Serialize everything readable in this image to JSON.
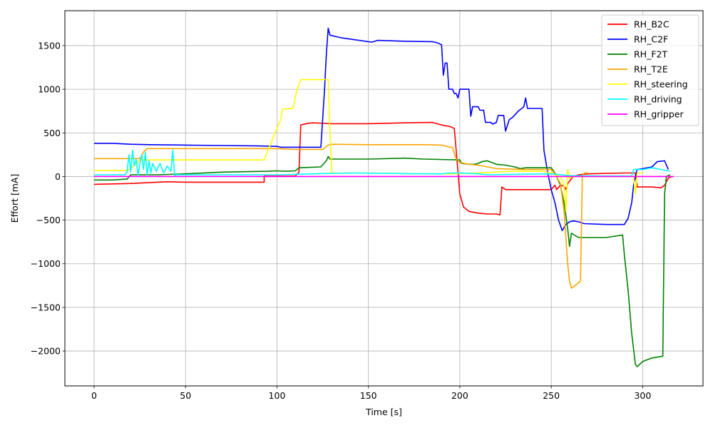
{
  "chart_data": {
    "type": "line",
    "title": "",
    "xlabel": "Time [s]",
    "ylabel": "Effort [mA]",
    "xlim": [
      -16,
      333
    ],
    "ylim": [
      -2400,
      1900
    ],
    "xticks": [
      0,
      50,
      100,
      150,
      200,
      250,
      300
    ],
    "yticks": [
      -2000,
      -1500,
      -1000,
      -500,
      0,
      500,
      1000,
      1500
    ],
    "xtick_labels": [
      "0",
      "50",
      "100",
      "150",
      "200",
      "250",
      "300"
    ],
    "ytick_labels": [
      "−2000",
      "−1500",
      "−1000",
      "−500",
      "0",
      "500",
      "1000",
      "1500"
    ],
    "grid": true,
    "legend_position": "top-right",
    "series": [
      {
        "name": "RH_B2C",
        "color": "#ff0000",
        "points": [
          [
            0,
            -90
          ],
          [
            20,
            -80
          ],
          [
            40,
            -60
          ],
          [
            50,
            -65
          ],
          [
            70,
            -65
          ],
          [
            93,
            -65
          ],
          [
            93,
            5
          ],
          [
            110,
            5
          ],
          [
            112,
            50
          ],
          [
            113,
            590
          ],
          [
            117,
            610
          ],
          [
            120,
            615
          ],
          [
            130,
            605
          ],
          [
            140,
            605
          ],
          [
            150,
            605
          ],
          [
            170,
            615
          ],
          [
            185,
            620
          ],
          [
            190,
            590
          ],
          [
            195,
            570
          ],
          [
            197,
            550
          ],
          [
            198,
            300
          ],
          [
            200,
            -200
          ],
          [
            202,
            -350
          ],
          [
            205,
            -400
          ],
          [
            210,
            -420
          ],
          [
            215,
            -430
          ],
          [
            220,
            -430
          ],
          [
            222,
            -440
          ],
          [
            223,
            -120
          ],
          [
            225,
            -150
          ],
          [
            240,
            -150
          ],
          [
            250,
            -150
          ],
          [
            252,
            -100
          ],
          [
            253,
            -150
          ],
          [
            255,
            -100
          ],
          [
            257,
            -110
          ],
          [
            258,
            -150
          ],
          [
            259,
            -80
          ],
          [
            262,
            0
          ],
          [
            265,
            20
          ],
          [
            270,
            30
          ],
          [
            280,
            35
          ],
          [
            290,
            40
          ],
          [
            296,
            40
          ],
          [
            297,
            -120
          ],
          [
            305,
            -120
          ],
          [
            310,
            -130
          ],
          [
            312,
            -100
          ],
          [
            314,
            -20
          ],
          [
            316,
            0
          ]
        ]
      },
      {
        "name": "RH_C2F",
        "color": "#0000ff",
        "points": [
          [
            0,
            380
          ],
          [
            10,
            380
          ],
          [
            20,
            370
          ],
          [
            30,
            365
          ],
          [
            50,
            360
          ],
          [
            70,
            355
          ],
          [
            90,
            350
          ],
          [
            100,
            345
          ],
          [
            102,
            335
          ],
          [
            110,
            335
          ],
          [
            124,
            335
          ],
          [
            126,
            1000
          ],
          [
            127,
            1400
          ],
          [
            128,
            1700
          ],
          [
            129,
            1620
          ],
          [
            135,
            1590
          ],
          [
            150,
            1545
          ],
          [
            152,
            1540
          ],
          [
            155,
            1560
          ],
          [
            170,
            1550
          ],
          [
            185,
            1545
          ],
          [
            188,
            1530
          ],
          [
            190,
            1510
          ],
          [
            191,
            1160
          ],
          [
            192,
            1300
          ],
          [
            193,
            1300
          ],
          [
            194,
            1000
          ],
          [
            196,
            1000
          ],
          [
            197,
            950
          ],
          [
            198,
            950
          ],
          [
            199,
            900
          ],
          [
            200,
            1000
          ],
          [
            205,
            1000
          ],
          [
            206,
            690
          ],
          [
            207,
            800
          ],
          [
            210,
            800
          ],
          [
            211,
            760
          ],
          [
            213,
            760
          ],
          [
            214,
            620
          ],
          [
            217,
            620
          ],
          [
            218,
            600
          ],
          [
            220,
            620
          ],
          [
            221,
            700
          ],
          [
            224,
            700
          ],
          [
            225,
            520
          ],
          [
            227,
            650
          ],
          [
            229,
            680
          ],
          [
            232,
            750
          ],
          [
            235,
            800
          ],
          [
            236,
            900
          ],
          [
            237,
            780
          ],
          [
            245,
            780
          ],
          [
            246,
            300
          ],
          [
            248,
            50
          ],
          [
            250,
            -150
          ],
          [
            252,
            -300
          ],
          [
            254,
            -500
          ],
          [
            256,
            -620
          ],
          [
            258,
            -550
          ],
          [
            260,
            -520
          ],
          [
            262,
            -510
          ],
          [
            265,
            -520
          ],
          [
            268,
            -540
          ],
          [
            280,
            -550
          ],
          [
            290,
            -550
          ],
          [
            292,
            -480
          ],
          [
            294,
            -300
          ],
          [
            295,
            -100
          ],
          [
            296,
            0
          ],
          [
            297,
            80
          ],
          [
            300,
            90
          ],
          [
            305,
            110
          ],
          [
            308,
            170
          ],
          [
            312,
            180
          ],
          [
            314,
            80
          ]
        ]
      },
      {
        "name": "RH_F2T",
        "color": "#008000",
        "points": [
          [
            0,
            -40
          ],
          [
            10,
            -40
          ],
          [
            18,
            -30
          ],
          [
            20,
            20
          ],
          [
            35,
            20
          ],
          [
            50,
            30
          ],
          [
            70,
            50
          ],
          [
            95,
            60
          ],
          [
            100,
            65
          ],
          [
            105,
            60
          ],
          [
            110,
            65
          ],
          [
            112,
            100
          ],
          [
            124,
            110
          ],
          [
            127,
            180
          ],
          [
            128,
            230
          ],
          [
            129,
            200
          ],
          [
            150,
            200
          ],
          [
            170,
            210
          ],
          [
            180,
            200
          ],
          [
            200,
            190
          ],
          [
            201,
            150
          ],
          [
            205,
            140
          ],
          [
            208,
            140
          ],
          [
            210,
            150
          ],
          [
            212,
            170
          ],
          [
            215,
            180
          ],
          [
            220,
            140
          ],
          [
            225,
            130
          ],
          [
            230,
            110
          ],
          [
            233,
            90
          ],
          [
            236,
            100
          ],
          [
            250,
            100
          ],
          [
            252,
            40
          ],
          [
            255,
            -100
          ],
          [
            257,
            -300
          ],
          [
            259,
            -600
          ],
          [
            260,
            -800
          ],
          [
            261,
            -650
          ],
          [
            265,
            -700
          ],
          [
            280,
            -700
          ],
          [
            289,
            -670
          ],
          [
            290,
            -900
          ],
          [
            292,
            -1300
          ],
          [
            294,
            -1800
          ],
          [
            296,
            -2150
          ],
          [
            297,
            -2180
          ],
          [
            300,
            -2120
          ],
          [
            305,
            -2080
          ],
          [
            308,
            -2070
          ],
          [
            311,
            -2060
          ],
          [
            312,
            -200
          ],
          [
            313,
            0
          ],
          [
            315,
            20
          ]
        ]
      },
      {
        "name": "RH_T2E",
        "color": "#ffa500",
        "points": [
          [
            0,
            205
          ],
          [
            25,
            205
          ],
          [
            27,
            280
          ],
          [
            28,
            300
          ],
          [
            29,
            320
          ],
          [
            50,
            320
          ],
          [
            100,
            320
          ],
          [
            110,
            310
          ],
          [
            125,
            310
          ],
          [
            128,
            360
          ],
          [
            130,
            370
          ],
          [
            150,
            365
          ],
          [
            180,
            365
          ],
          [
            190,
            360
          ],
          [
            196,
            330
          ],
          [
            198,
            200
          ],
          [
            200,
            160
          ],
          [
            205,
            140
          ],
          [
            210,
            130
          ],
          [
            220,
            90
          ],
          [
            235,
            80
          ],
          [
            250,
            80
          ],
          [
            252,
            30
          ],
          [
            255,
            -80
          ],
          [
            257,
            -400
          ],
          [
            259,
            -1000
          ],
          [
            260,
            -1200
          ],
          [
            261,
            -1280
          ],
          [
            263,
            -1250
          ],
          [
            266,
            -1200
          ],
          [
            267,
            -10
          ],
          [
            268,
            40
          ],
          [
            270,
            40
          ]
        ]
      },
      {
        "name": "RH_steering",
        "color": "#ffff00",
        "points": [
          [
            0,
            70
          ],
          [
            18,
            70
          ],
          [
            20,
            90
          ],
          [
            23,
            150
          ],
          [
            25,
            190
          ],
          [
            30,
            190
          ],
          [
            50,
            190
          ],
          [
            70,
            190
          ],
          [
            90,
            190
          ],
          [
            93,
            190
          ],
          [
            95,
            300
          ],
          [
            97,
            400
          ],
          [
            99,
            500
          ],
          [
            100,
            550
          ],
          [
            102,
            650
          ],
          [
            103,
            770
          ],
          [
            108,
            780
          ],
          [
            109,
            800
          ],
          [
            110,
            900
          ],
          [
            111,
            1000
          ],
          [
            112,
            1050
          ],
          [
            113,
            1110
          ],
          [
            120,
            1110
          ],
          [
            128,
            1110
          ],
          [
            129,
            500
          ],
          [
            130,
            40
          ],
          [
            150,
            40
          ],
          [
            180,
            30
          ],
          [
            195,
            30
          ],
          [
            200,
            35
          ],
          [
            210,
            40
          ],
          [
            230,
            60
          ],
          [
            245,
            60
          ],
          [
            250,
            40
          ],
          [
            252,
            20
          ],
          [
            255,
            0
          ],
          [
            257,
            -100
          ],
          [
            258,
            -400
          ],
          [
            259,
            80
          ],
          [
            260,
            -20
          ],
          [
            262,
            0
          ],
          [
            290,
            0
          ],
          [
            295,
            0
          ],
          [
            296,
            -200
          ],
          [
            297,
            40
          ],
          [
            300,
            40
          ]
        ]
      },
      {
        "name": "RH_driving",
        "color": "#00ffff",
        "points": [
          [
            0,
            20
          ],
          [
            17,
            20
          ],
          [
            18,
            50
          ],
          [
            19,
            250
          ],
          [
            20,
            50
          ],
          [
            21,
            300
          ],
          [
            22,
            120
          ],
          [
            23,
            200
          ],
          [
            24,
            10
          ],
          [
            25,
            150
          ],
          [
            26,
            250
          ],
          [
            27,
            80
          ],
          [
            28,
            280
          ],
          [
            29,
            20
          ],
          [
            30,
            180
          ],
          [
            31,
            40
          ],
          [
            32,
            150
          ],
          [
            34,
            60
          ],
          [
            36,
            150
          ],
          [
            38,
            40
          ],
          [
            40,
            120
          ],
          [
            42,
            60
          ],
          [
            43,
            300
          ],
          [
            44,
            10
          ],
          [
            45,
            20
          ],
          [
            60,
            20
          ],
          [
            100,
            20
          ],
          [
            120,
            30
          ],
          [
            140,
            40
          ],
          [
            160,
            35
          ],
          [
            180,
            30
          ],
          [
            190,
            30
          ],
          [
            195,
            40
          ],
          [
            200,
            40
          ],
          [
            205,
            35
          ],
          [
            210,
            30
          ],
          [
            215,
            20
          ],
          [
            230,
            25
          ],
          [
            250,
            30
          ],
          [
            255,
            20
          ],
          [
            260,
            10
          ],
          [
            280,
            5
          ],
          [
            294,
            5
          ],
          [
            295,
            80
          ],
          [
            300,
            80
          ],
          [
            305,
            100
          ],
          [
            310,
            80
          ],
          [
            315,
            60
          ]
        ]
      },
      {
        "name": "RH_gripper",
        "color": "#ff00ff",
        "points": [
          [
            0,
            0
          ],
          [
            50,
            0
          ],
          [
            100,
            0
          ],
          [
            150,
            0
          ],
          [
            200,
            0
          ],
          [
            250,
            0
          ],
          [
            300,
            0
          ],
          [
            317,
            0
          ]
        ]
      }
    ]
  }
}
